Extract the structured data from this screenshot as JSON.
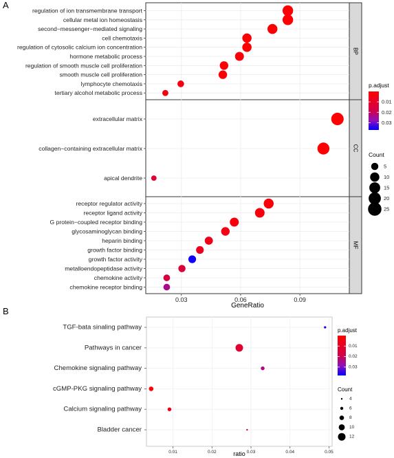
{
  "panels": {
    "a_label": "A",
    "b_label": "B"
  },
  "chart_data": [
    {
      "type": "scatter",
      "panel": "A",
      "xlabel": "GeneRatio",
      "ylabel": "",
      "xlim": [
        0.012,
        0.115
      ],
      "xticks": [
        0.03,
        0.06,
        0.09
      ],
      "xtick_labels": [
        "0.03",
        "0.06",
        "0.09"
      ],
      "facets": [
        {
          "name": "BP",
          "categories": [
            "regulation of ion transmembrane transport",
            "cellular metal ion homeostasis",
            "second−messenger−mediated signaling",
            "cell chemotaxis",
            "regulation of cytosolic calcium ion concentration",
            "hormone metabolic process",
            "regulation of smooth muscle cell proliferation",
            "smooth muscle cell proliferation",
            "lymphocyte chemotaxis",
            "tertiary alcohol metabolic process"
          ],
          "ratio": [
            0.0839,
            0.0839,
            0.0761,
            0.0632,
            0.0632,
            0.0594,
            0.0516,
            0.051,
            0.0297,
            0.0219
          ],
          "count": [
            14,
            14,
            12,
            10,
            10,
            9,
            8,
            8,
            4,
            3
          ],
          "padjust": [
            0.001,
            0.001,
            0.001,
            0.001,
            0.001,
            0.002,
            0.001,
            0.001,
            0.004,
            0.004
          ]
        },
        {
          "name": "CC",
          "categories": [
            "extracellular matrix",
            "collagen−containing extracellular matrix",
            "apical dendrite"
          ],
          "ratio": [
            0.109,
            0.1019,
            0.0161
          ],
          "count": [
            21,
            19,
            2
          ],
          "padjust": [
            0.0005,
            0.0005,
            0.012
          ]
        },
        {
          "name": "MF",
          "categories": [
            "receptor regulator activity",
            "receptor ligand activity",
            "G protein−coupled receptor binding",
            "glycosaminoglycan binding",
            "heparin binding",
            "growth factor binding",
            "growth factor activity",
            "metalloendopeptidase activity",
            "chemokine activity",
            "chemokine receptor binding"
          ],
          "ratio": [
            0.0742,
            0.0697,
            0.0568,
            0.0523,
            0.0439,
            0.0394,
            0.0355,
            0.0303,
            0.0226,
            0.0226
          ],
          "count": [
            12,
            11,
            9,
            8,
            7,
            6,
            6,
            5,
            4,
            4
          ],
          "padjust": [
            0.002,
            0.003,
            0.003,
            0.005,
            0.006,
            0.008,
            0.036,
            0.014,
            0.016,
            0.024
          ]
        }
      ],
      "legend_color": {
        "title": "p.adjust",
        "range": [
          0,
          0.037
        ],
        "ticks": [
          0.01,
          0.02,
          0.03
        ],
        "tick_labels": [
          "0.01",
          "0.02",
          "0.03"
        ],
        "low_color": "#ff0000",
        "high_color": "#0000ff"
      },
      "legend_size": {
        "title": "Count",
        "values": [
          5,
          10,
          15,
          20,
          25
        ],
        "labels": [
          "5",
          "10",
          "15",
          "20",
          "25"
        ]
      }
    },
    {
      "type": "scatter",
      "panel": "B",
      "xlabel": "ratio",
      "ylabel": "",
      "xlim": [
        0.0032,
        0.0508
      ],
      "xticks": [
        0.01,
        0.02,
        0.03,
        0.04,
        0.05
      ],
      "xtick_labels": [
        "0.01",
        "0.02",
        "0.03",
        "0.04",
        "0.05"
      ],
      "categories": [
        "TGF-bata sinaling pathway",
        "Pathways in cancer",
        "Chemokine signaling pathway",
        "cGMP-PKG signaling pathway",
        "Calcium signaling pathway",
        "Bladder cancer"
      ],
      "ratio": [
        0.049,
        0.027,
        0.033,
        0.0044,
        0.0091,
        0.029
      ],
      "count": [
        5,
        12,
        7,
        8,
        7,
        3
      ],
      "padjust": [
        0.037,
        0.012,
        0.024,
        0.0005,
        0.007,
        0.02
      ],
      "legend_color": {
        "title": "p.adjust",
        "range": [
          0,
          0.038
        ],
        "ticks": [
          0.01,
          0.02,
          0.03
        ],
        "tick_labels": [
          "0.01",
          "0.02",
          "0.03"
        ],
        "low_color": "#ff0000",
        "high_color": "#0000ff"
      },
      "legend_size": {
        "title": "Count",
        "values": [
          4,
          6,
          8,
          10,
          12
        ],
        "labels": [
          "4",
          "6",
          "8",
          "10",
          "12"
        ]
      }
    }
  ]
}
